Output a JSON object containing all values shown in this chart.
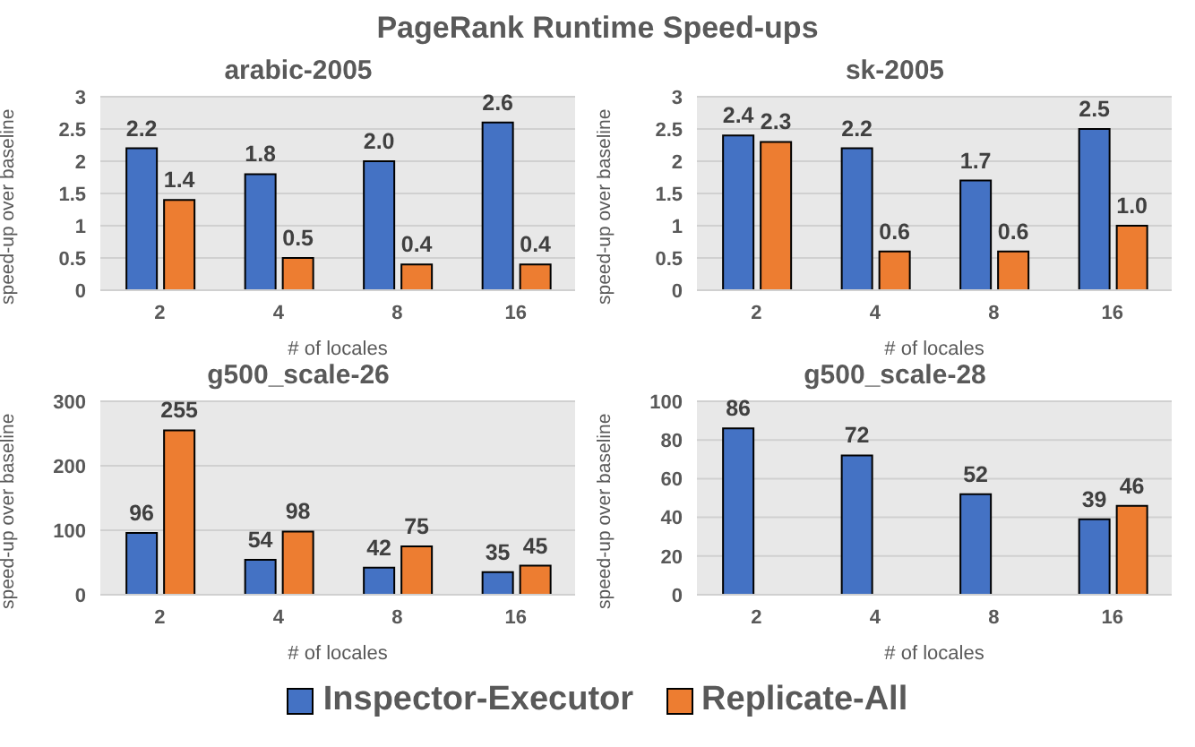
{
  "chart_data": [
    {
      "type": "bar",
      "title": "PageRank Runtime Speed-ups",
      "subtitle": "arabic-2005",
      "xlabel": "# of locales",
      "ylabel": "speed-up over baseline",
      "categories": [
        "2",
        "4",
        "8",
        "16"
      ],
      "ylim": [
        0,
        3
      ],
      "yticks": [
        0,
        {
          "value": 0.5,
          "label": "0.5"
        },
        1,
        {
          "value": 1.5,
          "label": "1.5"
        },
        2,
        {
          "value": 2.5,
          "label": "2.5"
        },
        3
      ],
      "grid": "y",
      "legend": "bottom",
      "series": [
        {
          "name": "Inspector-Executor",
          "color": "#4472c4",
          "values": [
            2.2,
            1.8,
            2.0,
            2.6
          ],
          "value_labels": [
            "2.2",
            "1.8",
            "2.0",
            "2.6"
          ]
        },
        {
          "name": "Replicate-All",
          "color": "#ed7d31",
          "values": [
            1.4,
            0.5,
            0.4,
            0.4
          ],
          "value_labels": [
            "1.4",
            "0.5",
            "0.4",
            "0.4"
          ]
        }
      ]
    },
    {
      "type": "bar",
      "title": "sk-2005",
      "xlabel": "# of locales",
      "ylabel": "speed-up over baseline",
      "categories": [
        "2",
        "4",
        "8",
        "16"
      ],
      "ylim": [
        0,
        3
      ],
      "yticks": [
        0,
        {
          "value": 0.5,
          "label": "0.5"
        },
        1,
        {
          "value": 1.5,
          "label": "1.5"
        },
        2,
        {
          "value": 2.5,
          "label": "2.5"
        },
        3
      ],
      "grid": "y",
      "series": [
        {
          "color": "#4472c4",
          "values": [
            2.4,
            2.2,
            1.7,
            2.5
          ],
          "value_labels": [
            "2.4",
            "2.2",
            "1.7",
            "2.5"
          ]
        },
        {
          "color": "#ed7d31",
          "values": [
            2.3,
            0.6,
            0.6,
            1.0
          ],
          "value_labels": [
            "2.3",
            "0.6",
            "0.6",
            "1.0"
          ]
        }
      ]
    },
    {
      "type": "bar",
      "title": "g500_scale-26",
      "xlabel": "# of locales",
      "ylabel": "speed-up over baseline",
      "categories": [
        "2",
        "4",
        "8",
        "16"
      ],
      "ylim": [
        0,
        300
      ],
      "yticks": [
        0,
        100,
        200,
        300
      ],
      "grid": "y",
      "series": [
        {
          "color": "#4472c4",
          "values": [
            96,
            54,
            42,
            35
          ],
          "value_labels": [
            "96",
            "54",
            "42",
            "35"
          ]
        },
        {
          "color": "#ed7d31",
          "values": [
            255,
            98,
            75,
            45
          ],
          "value_labels": [
            "255",
            "98",
            "75",
            "45"
          ]
        }
      ]
    },
    {
      "type": "bar",
      "title": "g500_scale-28",
      "xlabel": "# of locales",
      "ylabel": "speed-up over baseline",
      "categories": [
        "2",
        "4",
        "8",
        "16"
      ],
      "ylim": [
        0,
        100
      ],
      "yticks": [
        0,
        20,
        40,
        60,
        80,
        100
      ],
      "grid": "y",
      "series": [
        {
          "color": "#4472c4",
          "values": [
            86,
            72,
            52,
            39
          ],
          "value_labels": [
            "86",
            "72",
            "52",
            "39"
          ]
        },
        {
          "color": "#ed7d31",
          "values": [
            null,
            null,
            null,
            46
          ],
          "value_labels": [
            null,
            null,
            null,
            "46"
          ]
        }
      ]
    }
  ]
}
